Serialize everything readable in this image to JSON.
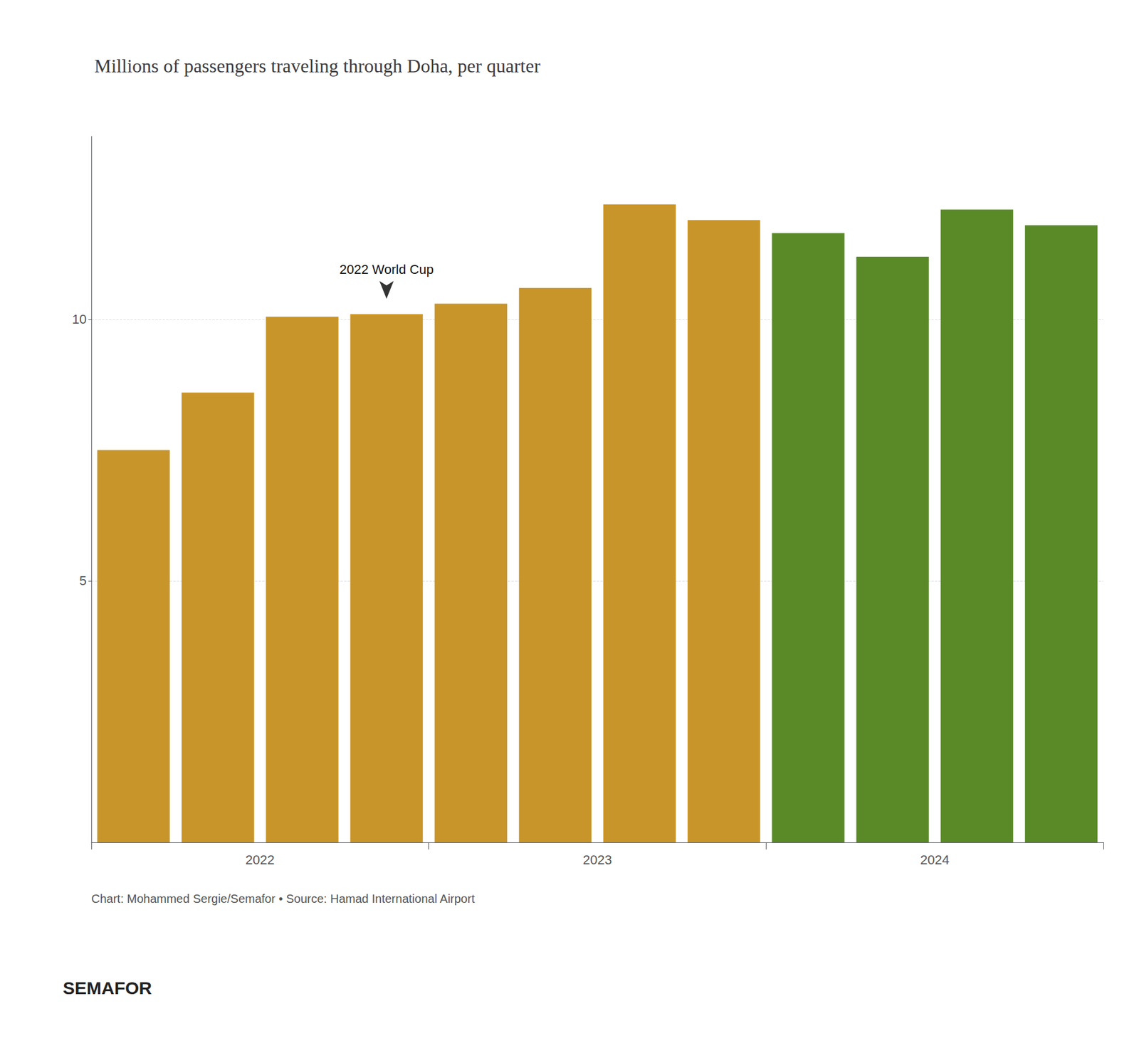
{
  "chart_data": {
    "type": "bar",
    "title": "Millions of passengers traveling through Doha, per quarter",
    "categories": [
      null,
      null,
      null,
      null,
      null,
      null,
      null,
      null,
      null,
      null,
      null,
      null
    ],
    "group_labels": [
      "2022",
      "2023",
      "2024"
    ],
    "values": [
      7.5,
      8.6,
      10.05,
      10.1,
      10.3,
      10.6,
      12.2,
      11.9,
      11.65,
      11.2,
      12.1,
      11.8
    ],
    "colors": [
      "#C8952A",
      "#C8952A",
      "#C8952A",
      "#C8952A",
      "#C8952A",
      "#C8952A",
      "#C8952A",
      "#C8952A",
      "#5A8A28",
      "#5A8A28",
      "#5A8A28",
      "#5A8A28"
    ],
    "ylim": [
      0,
      13.5
    ],
    "yticks": [
      5,
      10
    ],
    "grid": true,
    "annotations": [
      {
        "text": "2022 World Cup",
        "bar": 3
      }
    ],
    "source": "Chart: Mohammed Sergie/Semafor • Source: Hamad International Airport",
    "footer": "SEMAFOR"
  }
}
